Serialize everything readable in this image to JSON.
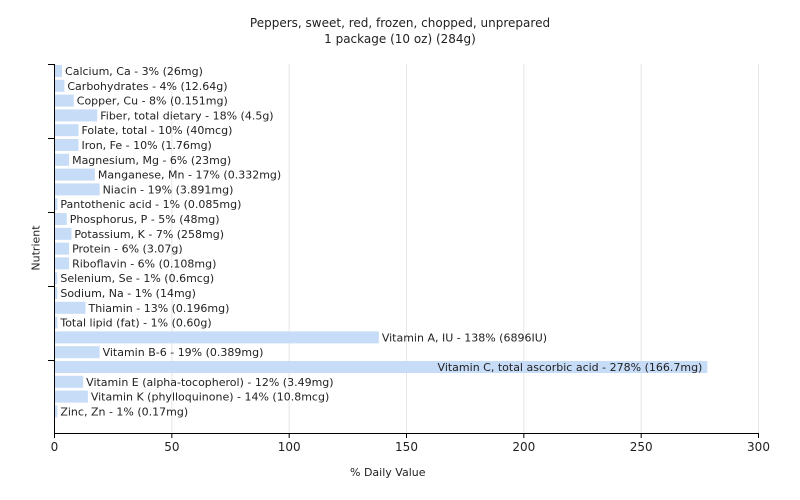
{
  "chart_data": {
    "type": "bar",
    "orientation": "horizontal",
    "title": "Peppers, sweet, red, frozen, chopped, unprepared",
    "subtitle": "1 package (10 oz) (284g)",
    "xlabel": "% Daily Value",
    "ylabel": "Nutrient",
    "xlim": [
      0,
      300
    ],
    "xticks": [
      0,
      50,
      100,
      150,
      200,
      250,
      300
    ],
    "grid": true,
    "bar_color": "#c6dcf7",
    "categories": [
      "Calcium, Ca",
      "Carbohydrates",
      "Copper, Cu",
      "Fiber, total dietary",
      "Folate, total",
      "Iron, Fe",
      "Magnesium, Mg",
      "Manganese, Mn",
      "Niacin",
      "Pantothenic acid",
      "Phosphorus, P",
      "Potassium, K",
      "Protein",
      "Riboflavin",
      "Selenium, Se",
      "Sodium, Na",
      "Thiamin",
      "Total lipid (fat)",
      "Vitamin A, IU",
      "Vitamin B-6",
      "Vitamin C, total ascorbic acid",
      "Vitamin E (alpha-tocopherol)",
      "Vitamin K (phylloquinone)",
      "Zinc, Zn"
    ],
    "values": [
      3,
      4,
      8,
      18,
      10,
      10,
      6,
      17,
      19,
      1,
      5,
      7,
      6,
      6,
      1,
      1,
      13,
      1,
      138,
      19,
      278,
      12,
      14,
      1
    ],
    "labels": [
      "Calcium, Ca - 3% (26mg)",
      "Carbohydrates - 4% (12.64g)",
      "Copper, Cu - 8% (0.151mg)",
      "Fiber, total dietary - 18% (4.5g)",
      "Folate, total - 10% (40mcg)",
      "Iron, Fe - 10% (1.76mg)",
      "Magnesium, Mg - 6% (23mg)",
      "Manganese, Mn - 17% (0.332mg)",
      "Niacin - 19% (3.891mg)",
      "Pantothenic acid - 1% (0.085mg)",
      "Phosphorus, P - 5% (48mg)",
      "Potassium, K - 7% (258mg)",
      "Protein - 6% (3.07g)",
      "Riboflavin - 6% (0.108mg)",
      "Selenium, Se - 1% (0.6mcg)",
      "Sodium, Na - 1% (14mg)",
      "Thiamin - 13% (0.196mg)",
      "Total lipid (fat) - 1% (0.60g)",
      "Vitamin A, IU - 138% (6896IU)",
      "Vitamin B-6 - 19% (0.389mg)",
      "Vitamin C, total ascorbic acid - 278% (166.7mg)",
      "Vitamin E (alpha-tocopherol) - 12% (3.49mg)",
      "Vitamin K (phylloquinone) - 14% (10.8mcg)",
      "Zinc, Zn - 1% (0.17mg)"
    ]
  }
}
